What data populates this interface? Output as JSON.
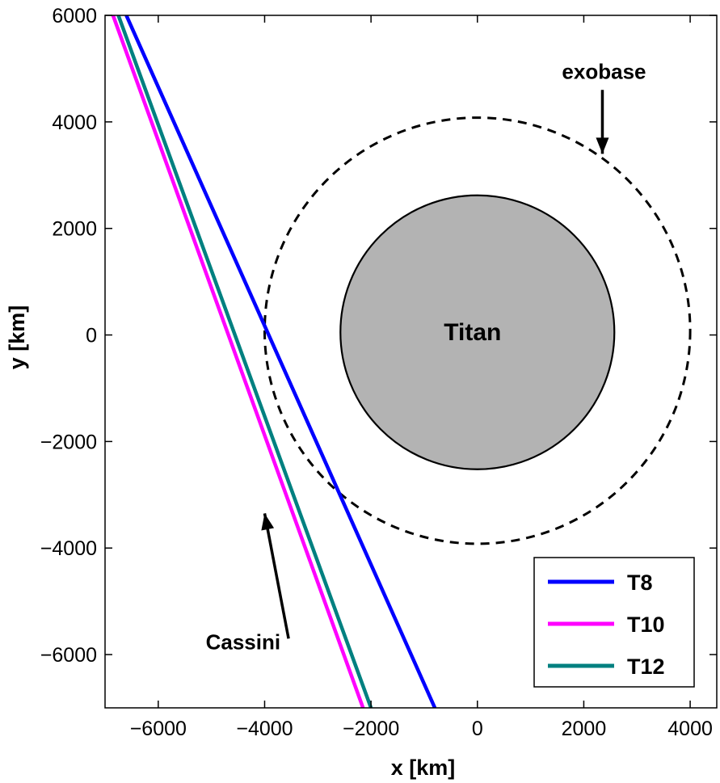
{
  "chart_data": {
    "type": "line",
    "xlabel": "x [km]",
    "ylabel": "y [km]",
    "xlim": [
      -7000,
      4500
    ],
    "ylim": [
      -7000,
      6000
    ],
    "xticks": [
      -6000,
      -4000,
      -2000,
      0,
      2000,
      4000
    ],
    "yticks": [
      -6000,
      -4000,
      -2000,
      0,
      2000,
      4000,
      6000
    ],
    "xtick_labels": [
      "−6000",
      "−4000",
      "−2000",
      "0",
      "2000",
      "4000"
    ],
    "ytick_labels": [
      "−6000",
      "−4000",
      "−2000",
      "0",
      "2000",
      "4000",
      "6000"
    ],
    "grid": false,
    "legend_position": "bottom-right",
    "series": [
      {
        "name": "T8",
        "color": "#0000ff",
        "x": [
          -6600,
          -800
        ],
        "y": [
          6000,
          -7000
        ]
      },
      {
        "name": "T10",
        "color": "#ff00ff",
        "x": [
          -6850,
          -2150
        ],
        "y": [
          6000,
          -7000
        ]
      },
      {
        "name": "T12",
        "color": "#008080",
        "x": [
          -6750,
          -2000
        ],
        "y": [
          6000,
          -7000
        ]
      }
    ],
    "titan": {
      "label": "Titan",
      "center": [
        0,
        50
      ],
      "radius": 2575,
      "fill": "#b3b3b3"
    },
    "exobase": {
      "label": "exobase",
      "center": [
        0,
        80
      ],
      "radius": 4000
    },
    "annotations": [
      {
        "text": "exobase",
        "arrow_from": [
          2350,
          4600
        ],
        "arrow_to": [
          2350,
          3400
        ]
      },
      {
        "text": "Cassini",
        "arrow_from": [
          -3550,
          -5700
        ],
        "arrow_to": [
          -4000,
          -3350
        ]
      }
    ]
  }
}
